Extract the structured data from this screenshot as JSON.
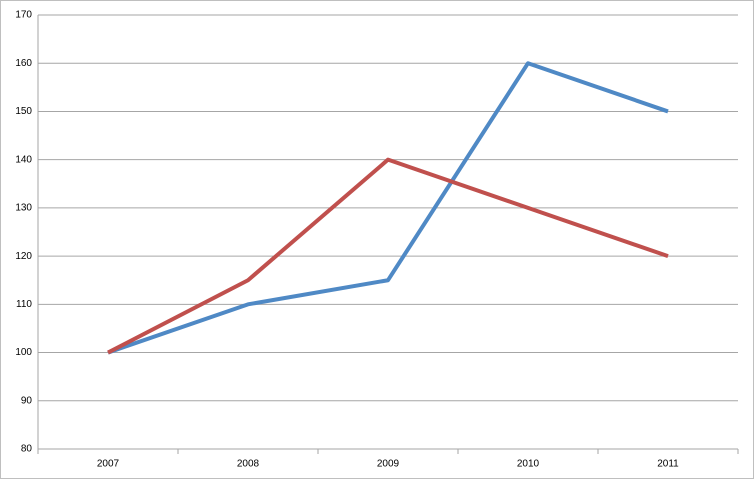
{
  "chart_data": {
    "type": "line",
    "categories": [
      "2007",
      "2008",
      "2009",
      "2010",
      "2011"
    ],
    "series": [
      {
        "color": "#4f89c5",
        "values": [
          100,
          110,
          115,
          160,
          150
        ]
      },
      {
        "color": "#c0504d",
        "values": [
          100,
          115,
          140,
          130,
          120
        ]
      }
    ],
    "ylim": [
      80,
      170
    ],
    "yticks": [
      80,
      90,
      100,
      110,
      120,
      130,
      140,
      150,
      160,
      170
    ],
    "grid": true
  }
}
